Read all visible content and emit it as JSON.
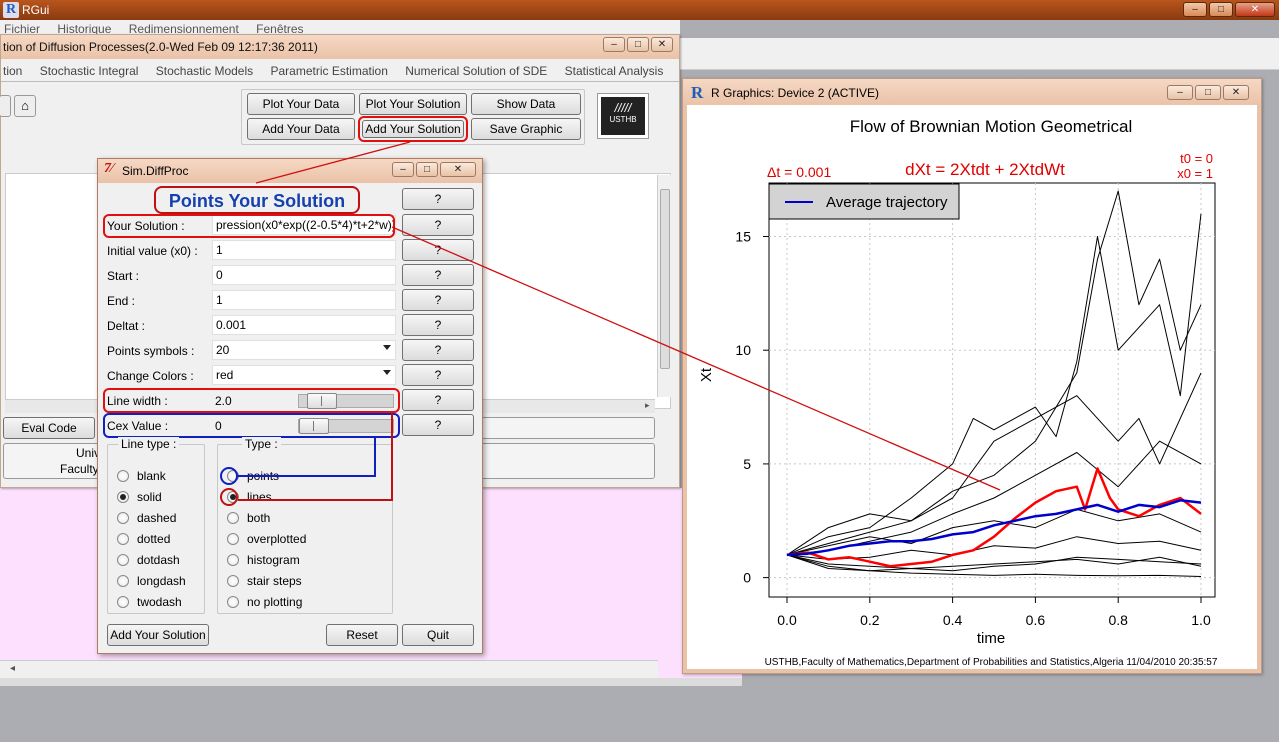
{
  "rgui": {
    "title": "RGui",
    "menu": [
      "Fichier",
      "Historique",
      "Redimensionnement",
      "Fenêtres"
    ]
  },
  "main_window": {
    "title": "tion of Diffusion Processes(2.0-Wed Feb 09 12:17:36 2011)",
    "tabs": [
      "tion",
      "Stochastic Integral",
      "Stochastic Models",
      "Parametric Estimation",
      "Numerical Solution of SDE",
      "Statistical Analysis",
      "?"
    ],
    "buttons": {
      "plot_data": "Plot Your Data",
      "plot_solution": "Plot Your Solution",
      "show_data": "Show Data",
      "add_data": "Add Your Data",
      "add_solution": "Add Your Solution",
      "save_graphic": "Save Graphic",
      "eval_code": "Eval Code"
    },
    "logo_text": "USTHB",
    "footer_line1": "Univ",
    "footer_line2": "Faculty"
  },
  "dialog": {
    "title": "Sim.DiffProc",
    "heading": "Points Your Solution",
    "help_label": "?",
    "fields": {
      "solution_label": "Your Solution :",
      "solution_value": "pression(x0*exp((2-0.5*4)*t+2*w))",
      "x0_label": "Initial value (x0) :",
      "x0_value": "1",
      "start_label": "Start :",
      "start_value": "0",
      "end_label": "End :",
      "end_value": "1",
      "deltat_label": "Deltat :",
      "deltat_value": "0.001",
      "symbols_label": "Points symbols :",
      "symbols_value": "20",
      "colors_label": "Change Colors :",
      "colors_value": "red",
      "lwd_label": "Line width :",
      "lwd_value": "2.0",
      "cex_label": "Cex Value :",
      "cex_value": "0"
    },
    "line_type": {
      "title": "Line type :",
      "options": [
        "blank",
        "solid",
        "dashed",
        "dotted",
        "dotdash",
        "longdash",
        "twodash"
      ],
      "selected": "solid"
    },
    "type": {
      "title": "Type :",
      "options": [
        "points",
        "lines",
        "both",
        "overplotted",
        "histogram",
        "stair steps",
        "no plotting"
      ],
      "selected": "lines"
    },
    "buttons": {
      "add_solution": "Add Your Solution",
      "reset": "Reset",
      "quit": "Quit"
    }
  },
  "graphics_window": {
    "title": "R Graphics: Device 2 (ACTIVE)"
  },
  "chart_data": {
    "type": "line",
    "title": "Flow of Brownian Motion Geometrical",
    "xlabel": "time",
    "ylabel": "Xt",
    "xlim": [
      0,
      1
    ],
    "ylim": [
      -0.5,
      17
    ],
    "x_ticks": [
      "0.0",
      "0.2",
      "0.4",
      "0.6",
      "0.8",
      "1.0"
    ],
    "y_ticks": [
      "0",
      "5",
      "10",
      "15"
    ],
    "x_tick_values": [
      0,
      0.2,
      0.4,
      0.6,
      0.8,
      1.0
    ],
    "y_tick_values": [
      0,
      5,
      10,
      15
    ],
    "grid": true,
    "annotations": {
      "dt": "Δt = 0.001",
      "sde": "dXt = 2Xtdt + 2XtdWt",
      "t0": "t0 = 0",
      "x0": "x0 = 1"
    },
    "legend": {
      "label": "Average trajectory",
      "color": "#0000cc",
      "position": "top-left"
    },
    "footer": "USTHB,Faculty of Mathematics,Department of Probabilities and Statistics,Algeria 11/04/2010 20:35:57",
    "series": [
      {
        "color": "#000000",
        "points": [
          [
            0,
            1
          ],
          [
            0.1,
            2.2
          ],
          [
            0.2,
            2.8
          ],
          [
            0.3,
            2.5
          ],
          [
            0.4,
            3.8
          ],
          [
            0.5,
            4.5
          ],
          [
            0.6,
            6
          ],
          [
            0.7,
            9
          ],
          [
            0.75,
            14
          ],
          [
            0.8,
            17
          ],
          [
            0.85,
            12
          ],
          [
            0.9,
            14
          ],
          [
            0.95,
            10
          ],
          [
            1.0,
            12
          ]
        ]
      },
      {
        "color": "#000000",
        "points": [
          [
            0,
            1
          ],
          [
            0.1,
            1.8
          ],
          [
            0.2,
            2.2
          ],
          [
            0.3,
            3.5
          ],
          [
            0.4,
            5
          ],
          [
            0.45,
            7
          ],
          [
            0.5,
            6.5
          ],
          [
            0.6,
            7.5
          ],
          [
            0.65,
            6.2
          ],
          [
            0.7,
            9.5
          ],
          [
            0.75,
            15
          ],
          [
            0.8,
            10
          ],
          [
            0.9,
            12
          ],
          [
            0.95,
            8
          ],
          [
            1.0,
            16
          ]
        ]
      },
      {
        "color": "#000000",
        "points": [
          [
            0,
            1
          ],
          [
            0.1,
            1.5
          ],
          [
            0.2,
            2
          ],
          [
            0.3,
            2.5
          ],
          [
            0.4,
            3.5
          ],
          [
            0.5,
            6
          ],
          [
            0.6,
            7
          ],
          [
            0.7,
            8
          ],
          [
            0.8,
            6
          ],
          [
            0.85,
            7
          ],
          [
            0.9,
            5
          ],
          [
            1.0,
            9
          ]
        ]
      },
      {
        "color": "#000000",
        "points": [
          [
            0,
            1
          ],
          [
            0.1,
            1.2
          ],
          [
            0.2,
            1.6
          ],
          [
            0.3,
            2
          ],
          [
            0.4,
            2.8
          ],
          [
            0.5,
            3.5
          ],
          [
            0.6,
            4.5
          ],
          [
            0.7,
            5.5
          ],
          [
            0.8,
            4
          ],
          [
            0.9,
            6
          ],
          [
            1.0,
            5
          ]
        ]
      },
      {
        "color": "#000000",
        "points": [
          [
            0,
            1
          ],
          [
            0.1,
            1.4
          ],
          [
            0.2,
            1.8
          ],
          [
            0.3,
            1.5
          ],
          [
            0.4,
            2.2
          ],
          [
            0.5,
            2.5
          ],
          [
            0.6,
            2.2
          ],
          [
            0.7,
            3
          ],
          [
            0.8,
            2.5
          ],
          [
            0.9,
            2.8
          ],
          [
            1.0,
            2
          ]
        ]
      },
      {
        "color": "#000000",
        "points": [
          [
            0,
            1
          ],
          [
            0.1,
            0.8
          ],
          [
            0.2,
            0.9
          ],
          [
            0.3,
            1.2
          ],
          [
            0.4,
            1
          ],
          [
            0.5,
            1.4
          ],
          [
            0.6,
            1.3
          ],
          [
            0.7,
            1.8
          ],
          [
            0.8,
            1.5
          ],
          [
            0.9,
            1.6
          ],
          [
            1.0,
            1.2
          ]
        ]
      },
      {
        "color": "#000000",
        "points": [
          [
            0,
            1
          ],
          [
            0.1,
            0.6
          ],
          [
            0.2,
            0.5
          ],
          [
            0.3,
            0.4
          ],
          [
            0.4,
            0.5
          ],
          [
            0.5,
            0.6
          ],
          [
            0.6,
            0.7
          ],
          [
            0.7,
            0.8
          ],
          [
            0.8,
            0.6
          ],
          [
            0.9,
            0.9
          ],
          [
            1.0,
            0.5
          ]
        ]
      },
      {
        "color": "#000000",
        "points": [
          [
            0,
            1
          ],
          [
            0.1,
            0.5
          ],
          [
            0.2,
            0.3
          ],
          [
            0.3,
            0.2
          ],
          [
            0.4,
            0.15
          ],
          [
            0.5,
            0.1
          ],
          [
            0.6,
            0.15
          ],
          [
            0.7,
            0.1
          ],
          [
            0.8,
            0.08
          ],
          [
            0.9,
            0.1
          ],
          [
            1.0,
            0.05
          ]
        ]
      },
      {
        "color": "#000000",
        "points": [
          [
            0,
            1
          ],
          [
            0.1,
            0.4
          ],
          [
            0.2,
            0.3
          ],
          [
            0.3,
            0.4
          ],
          [
            0.4,
            0.3
          ],
          [
            0.5,
            0.5
          ],
          [
            0.6,
            0.6
          ],
          [
            0.7,
            0.9
          ],
          [
            0.8,
            0.8
          ],
          [
            0.9,
            0.7
          ],
          [
            1.0,
            0.6
          ]
        ]
      },
      {
        "color": "#ff0000",
        "points": [
          [
            0,
            1
          ],
          [
            0.05,
            1.1
          ],
          [
            0.1,
            0.8
          ],
          [
            0.15,
            0.9
          ],
          [
            0.2,
            0.7
          ],
          [
            0.25,
            0.5
          ],
          [
            0.3,
            0.6
          ],
          [
            0.35,
            0.7
          ],
          [
            0.4,
            1.0
          ],
          [
            0.45,
            1.2
          ],
          [
            0.5,
            1.8
          ],
          [
            0.55,
            2.6
          ],
          [
            0.6,
            3.3
          ],
          [
            0.65,
            3.8
          ],
          [
            0.7,
            4.0
          ],
          [
            0.72,
            3.0
          ],
          [
            0.75,
            4.8
          ],
          [
            0.78,
            3.5
          ],
          [
            0.8,
            3.0
          ],
          [
            0.85,
            2.7
          ],
          [
            0.9,
            3.2
          ],
          [
            0.95,
            3.5
          ],
          [
            1.0,
            2.8
          ]
        ]
      },
      {
        "color": "#0000cc",
        "points": [
          [
            0,
            1
          ],
          [
            0.05,
            1.05
          ],
          [
            0.1,
            1.2
          ],
          [
            0.15,
            1.4
          ],
          [
            0.2,
            1.5
          ],
          [
            0.25,
            1.6
          ],
          [
            0.3,
            1.6
          ],
          [
            0.35,
            1.7
          ],
          [
            0.4,
            1.9
          ],
          [
            0.45,
            2.0
          ],
          [
            0.5,
            2.3
          ],
          [
            0.55,
            2.5
          ],
          [
            0.6,
            2.7
          ],
          [
            0.65,
            2.8
          ],
          [
            0.7,
            3.0
          ],
          [
            0.75,
            3.2
          ],
          [
            0.8,
            2.9
          ],
          [
            0.85,
            3.2
          ],
          [
            0.9,
            3.1
          ],
          [
            0.95,
            3.4
          ],
          [
            1.0,
            3.3
          ]
        ]
      }
    ]
  }
}
